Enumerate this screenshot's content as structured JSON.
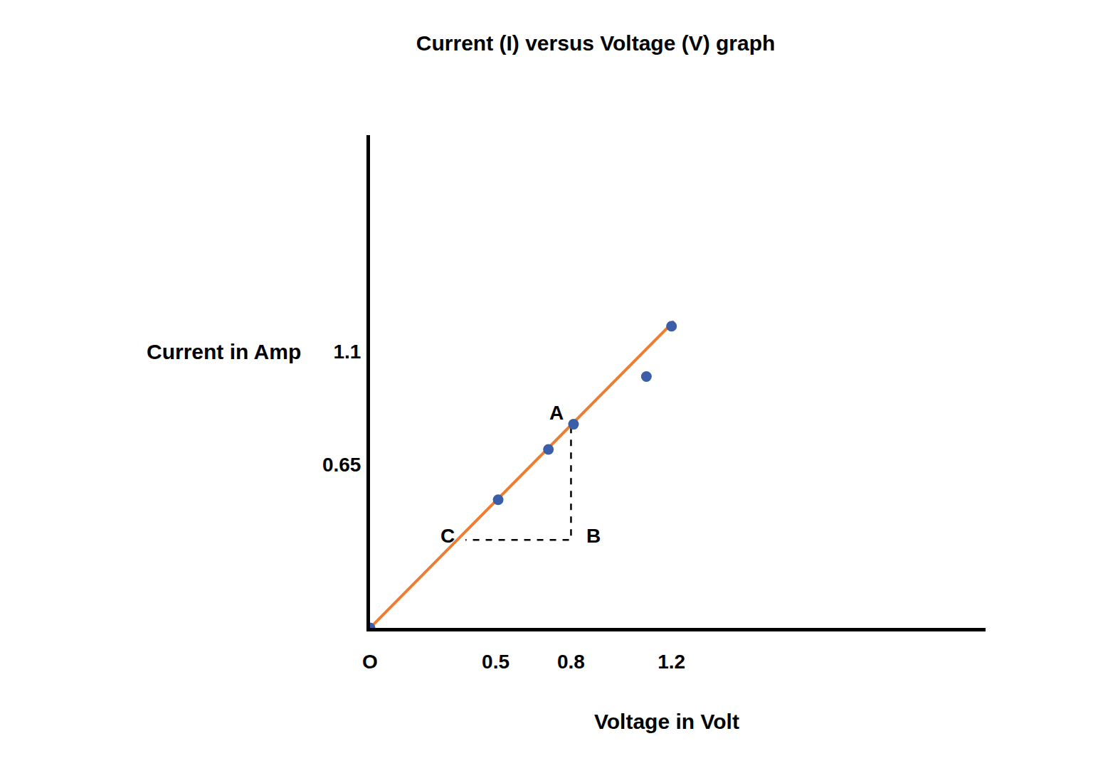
{
  "chart_data": {
    "type": "scatter",
    "title": "Current (I) versus Voltage (V) graph",
    "x_label": "Voltage in Volt",
    "y_label": "Current in Amp",
    "x": [
      0,
      0.51,
      0.71,
      0.81,
      1.1,
      1.2
    ],
    "values": [
      0,
      0.51,
      0.71,
      0.81,
      1.0,
      1.2
    ],
    "color": "#3a5ea8",
    "marker": "circle",
    "fit_line": {
      "x": [
        0,
        1.21
      ],
      "values": [
        0,
        1.22
      ],
      "color": "#ed7d31",
      "line_style": "solid"
    },
    "triangle": {
      "points": [
        {
          "label": "A",
          "x": 0.8,
          "y": 0.8
        },
        {
          "label": "B",
          "x": 0.8,
          "y": 0.35
        },
        {
          "label": "C",
          "x": 0.38,
          "y": 0.35
        }
      ],
      "line_style": "dash"
    },
    "xlim": [
      0,
      2.45
    ],
    "ylim": [
      0,
      1.96
    ],
    "xticks": [
      {
        "value": 0,
        "label": "O"
      },
      0.5,
      0.8,
      1.2
    ],
    "yticks": [
      0.65,
      1.1
    ],
    "grid": false
  }
}
